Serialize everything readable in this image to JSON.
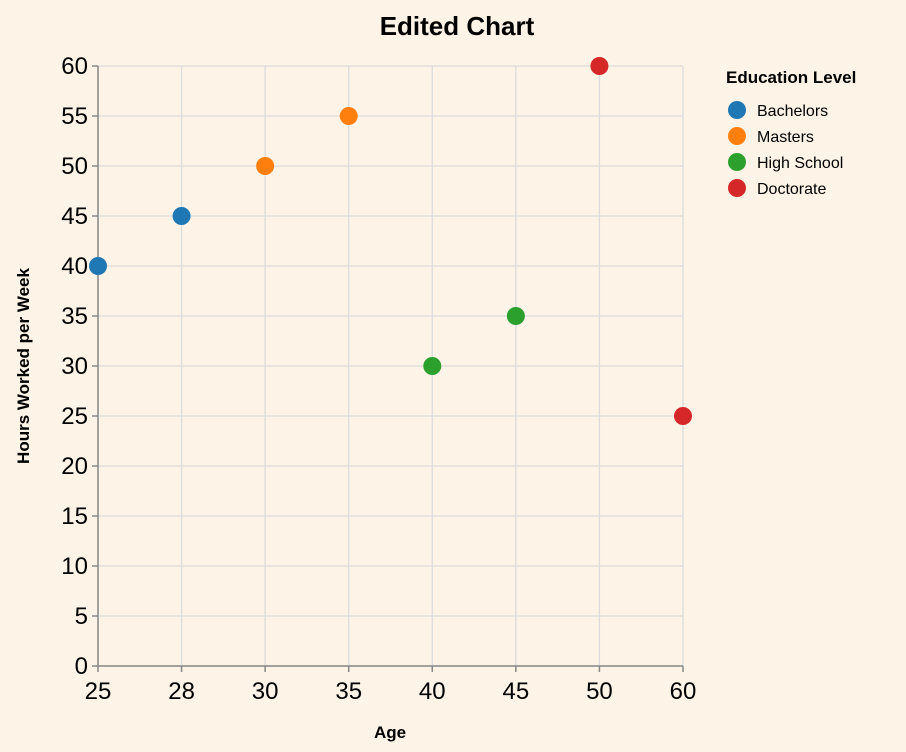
{
  "chart_data": {
    "type": "scatter",
    "title": "Edited Chart",
    "xlabel": "Age",
    "ylabel": "Hours Worked per Week",
    "x_categories": [
      "25",
      "28",
      "30",
      "35",
      "40",
      "45",
      "50",
      "60"
    ],
    "ylim": [
      0,
      60
    ],
    "y_ticks": [
      0,
      5,
      10,
      15,
      20,
      25,
      30,
      35,
      40,
      45,
      50,
      55,
      60
    ],
    "grid": true,
    "legend": {
      "title": "Education Level",
      "placement": "top-right"
    },
    "series": [
      {
        "name": "Bachelors",
        "color": "#1f77b4",
        "points": [
          {
            "x": "25",
            "y": 40
          },
          {
            "x": "28",
            "y": 45
          }
        ]
      },
      {
        "name": "Masters",
        "color": "#ff7f0e",
        "points": [
          {
            "x": "30",
            "y": 50
          },
          {
            "x": "35",
            "y": 55
          }
        ]
      },
      {
        "name": "High School",
        "color": "#2ca02c",
        "points": [
          {
            "x": "40",
            "y": 30
          },
          {
            "x": "45",
            "y": 35
          }
        ]
      },
      {
        "name": "Doctorate",
        "color": "#d62728",
        "points": [
          {
            "x": "50",
            "y": 60
          },
          {
            "x": "60",
            "y": 25
          }
        ]
      }
    ]
  }
}
